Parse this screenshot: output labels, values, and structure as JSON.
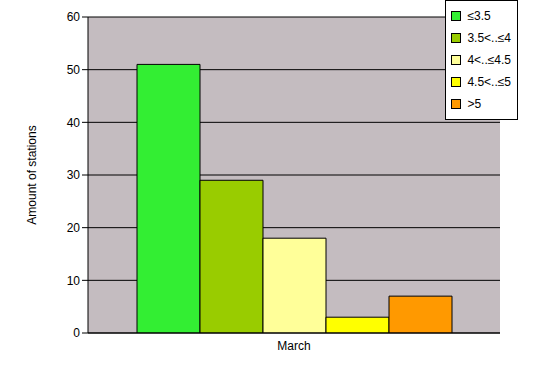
{
  "chart_data": {
    "type": "bar",
    "categories": [
      "March"
    ],
    "ylabel": "Amount of stations",
    "series": [
      {
        "name": "≤3.5",
        "color": "#33ee33",
        "values": [
          51
        ]
      },
      {
        "name": "3.5<..≤4",
        "color": "#99cc00",
        "values": [
          29
        ]
      },
      {
        "name": "4<..≤4.5",
        "color": "#ffff99",
        "values": [
          18
        ]
      },
      {
        "name": "4.5<..≤5",
        "color": "#ffff00",
        "values": [
          3
        ]
      },
      {
        "name": ">5",
        "color": "#ff9900",
        "values": [
          7
        ]
      }
    ],
    "ylim": [
      0,
      60
    ],
    "yticks": [
      0,
      10,
      20,
      30,
      40,
      50,
      60
    ],
    "grid": true,
    "legend": "upper right"
  }
}
